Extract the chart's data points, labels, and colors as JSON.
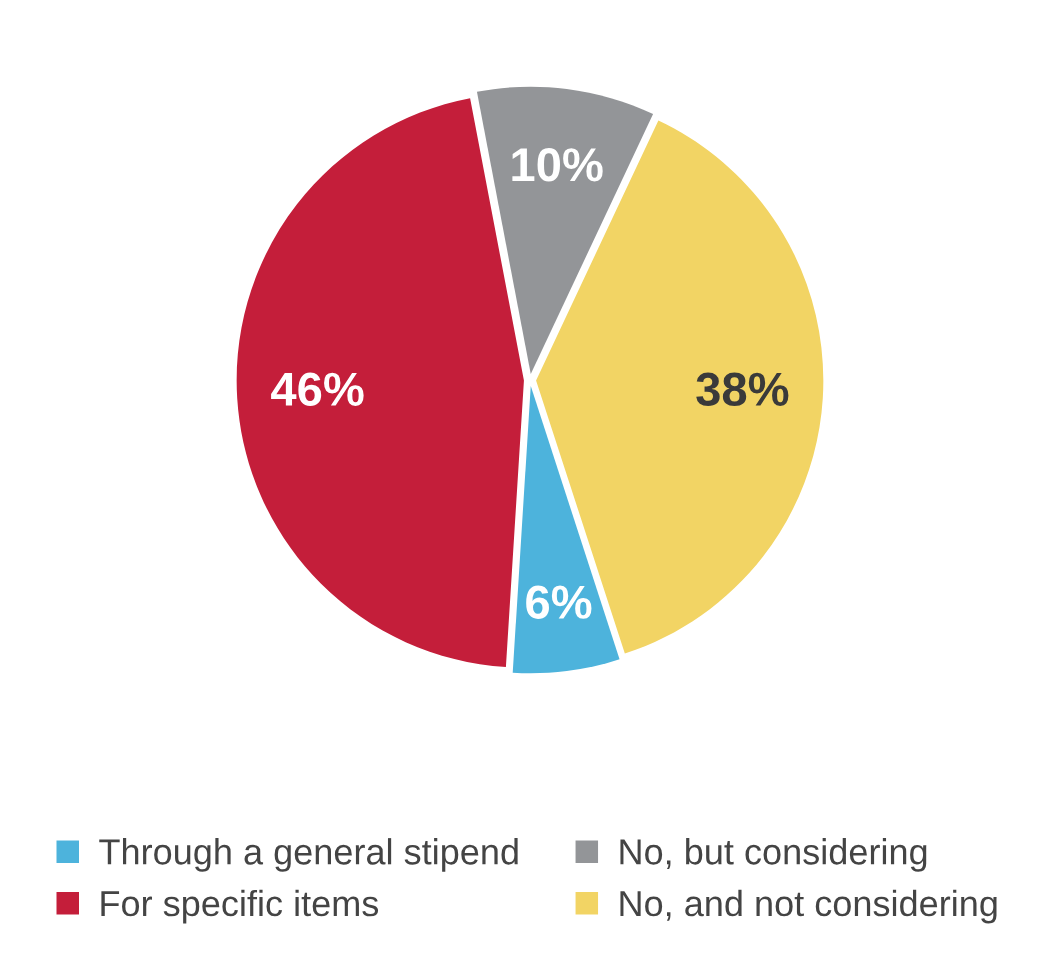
{
  "chart_data": {
    "type": "pie",
    "categories": [
      "Through a general stipend",
      "For specific items",
      "No, but considering",
      "No, and not considering"
    ],
    "values": [
      6,
      46,
      10,
      38
    ],
    "colors": [
      "#4db3dc",
      "#c41e3a",
      "#939598",
      "#f2d464"
    ],
    "value_labels": [
      "6%",
      "46%",
      "10%",
      "38%"
    ],
    "legend": "bottom"
  }
}
